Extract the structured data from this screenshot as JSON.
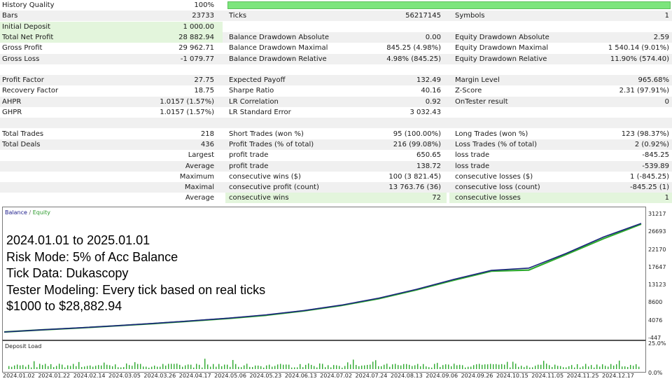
{
  "stats": {
    "rows": [
      {
        "alt": false,
        "hl": [],
        "quality_bar": true,
        "cells": [
          {
            "l": "History Quality",
            "v": "100%"
          },
          {
            "l": "",
            "v": ""
          },
          {
            "l": "",
            "v": ""
          }
        ]
      },
      {
        "alt": true,
        "hl": [],
        "cells": [
          {
            "l": "Bars",
            "v": "23733"
          },
          {
            "l": "Ticks",
            "v": "56217145"
          },
          {
            "l": "Symbols",
            "v": "1"
          }
        ]
      },
      {
        "alt": false,
        "hl": [
          0
        ],
        "cells": [
          {
            "l": "Initial Deposit",
            "v": "1 000.00"
          },
          {
            "l": "",
            "v": ""
          },
          {
            "l": "",
            "v": ""
          }
        ]
      },
      {
        "alt": true,
        "hl": [
          0
        ],
        "cells": [
          {
            "l": "Total Net Profit",
            "v": "28 882.94"
          },
          {
            "l": "Balance Drawdown Absolute",
            "v": "0.00"
          },
          {
            "l": "Equity Drawdown Absolute",
            "v": "2.59"
          }
        ]
      },
      {
        "alt": false,
        "hl": [],
        "cells": [
          {
            "l": "Gross Profit",
            "v": "29 962.71"
          },
          {
            "l": "Balance Drawdown Maximal",
            "v": "845.25 (4.98%)"
          },
          {
            "l": "Equity Drawdown Maximal",
            "v": "1 540.14 (9.01%)"
          }
        ]
      },
      {
        "alt": true,
        "hl": [],
        "cells": [
          {
            "l": "Gross Loss",
            "v": "-1 079.77"
          },
          {
            "l": "Balance Drawdown Relative",
            "v": "4.98% (845.25)"
          },
          {
            "l": "Equity Drawdown Relative",
            "v": "11.90% (574.40)"
          }
        ]
      },
      {
        "alt": false,
        "hl": [],
        "cells": [
          {
            "l": "",
            "v": ""
          },
          {
            "l": "",
            "v": ""
          },
          {
            "l": "",
            "v": ""
          }
        ]
      },
      {
        "alt": true,
        "hl": [],
        "cells": [
          {
            "l": "Profit Factor",
            "v": "27.75"
          },
          {
            "l": "Expected Payoff",
            "v": "132.49"
          },
          {
            "l": "Margin Level",
            "v": "965.68%"
          }
        ]
      },
      {
        "alt": false,
        "hl": [],
        "cells": [
          {
            "l": "Recovery Factor",
            "v": "18.75"
          },
          {
            "l": "Sharpe Ratio",
            "v": "40.16"
          },
          {
            "l": "Z-Score",
            "v": "2.31 (97.91%)"
          }
        ]
      },
      {
        "alt": true,
        "hl": [],
        "cells": [
          {
            "l": "AHPR",
            "v": "1.0157 (1.57%)"
          },
          {
            "l": "LR Correlation",
            "v": "0.92"
          },
          {
            "l": "OnTester result",
            "v": "0"
          }
        ]
      },
      {
        "alt": false,
        "hl": [],
        "cells": [
          {
            "l": "GHPR",
            "v": "1.0157 (1.57%)"
          },
          {
            "l": "LR Standard Error",
            "v": "3 032.43"
          },
          {
            "l": "",
            "v": ""
          }
        ]
      },
      {
        "alt": true,
        "hl": [],
        "cells": [
          {
            "l": "",
            "v": ""
          },
          {
            "l": "",
            "v": ""
          },
          {
            "l": "",
            "v": ""
          }
        ]
      },
      {
        "alt": false,
        "hl": [],
        "cells": [
          {
            "l": "Total Trades",
            "v": "218"
          },
          {
            "l": "Short Trades (won %)",
            "v": "95 (100.00%)"
          },
          {
            "l": "Long Trades (won %)",
            "v": "123 (98.37%)"
          }
        ]
      },
      {
        "alt": true,
        "hl": [],
        "cells": [
          {
            "l": "Total Deals",
            "v": "436"
          },
          {
            "l": "Profit Trades (% of total)",
            "v": "216 (99.08%)"
          },
          {
            "l": "Loss Trades (% of total)",
            "v": "2 (0.92%)"
          }
        ]
      },
      {
        "alt": false,
        "hl": [],
        "label_right": "Largest",
        "cells": [
          {
            "l": "",
            "v": ""
          },
          {
            "l": "profit trade",
            "v": "650.65"
          },
          {
            "l": "loss trade",
            "v": "-845.25"
          }
        ]
      },
      {
        "alt": true,
        "hl": [],
        "label_right": "Average",
        "cells": [
          {
            "l": "",
            "v": ""
          },
          {
            "l": "profit trade",
            "v": "138.72"
          },
          {
            "l": "loss trade",
            "v": "-539.89"
          }
        ]
      },
      {
        "alt": false,
        "hl": [],
        "label_right": "Maximum",
        "cells": [
          {
            "l": "",
            "v": ""
          },
          {
            "l": "consecutive wins ($)",
            "v": "100 (3 821.45)"
          },
          {
            "l": "consecutive losses ($)",
            "v": "1 (-845.25)"
          }
        ]
      },
      {
        "alt": true,
        "hl": [],
        "label_right": "Maximal",
        "cells": [
          {
            "l": "",
            "v": ""
          },
          {
            "l": "consecutive profit (count)",
            "v": "13 763.76 (36)"
          },
          {
            "l": "consecutive loss (count)",
            "v": "-845.25 (1)"
          }
        ]
      },
      {
        "alt": false,
        "hl": [
          1,
          2
        ],
        "label_right": "Average",
        "cells": [
          {
            "l": "",
            "v": ""
          },
          {
            "l": "consecutive wins",
            "v": "72"
          },
          {
            "l": "consecutive losses",
            "v": "1"
          }
        ]
      }
    ]
  },
  "chart": {
    "legend_balance": "Balance",
    "legend_sep": " / ",
    "legend_equity": "Equity",
    "load_title": "Deposit Load",
    "overlay_lines": [
      "2024.01.01 to 2025.01.01",
      "Risk Mode: 5% of Acc Balance",
      "Tick Data: Dukascopy",
      "Tester Modeling: Every tick based on real ticks",
      "$1000 to $28,882.94"
    ],
    "colors": {
      "balance": "#1a237e",
      "equity": "#2eaa2e",
      "load": "#2eaa2e"
    }
  },
  "chart_data": {
    "type": "line",
    "y_ticks": [
      "31217",
      "26693",
      "22170",
      "17647",
      "13123",
      "8600",
      "4076",
      "-447"
    ],
    "load_ticks": [
      "25.0%",
      "0.0%"
    ],
    "x_ticks": [
      "2024.01.02",
      "2024.01.22",
      "2024.02.14",
      "2024.03.05",
      "2024.03.26",
      "2024.04.17",
      "2024.05.06",
      "2024.05.23",
      "2024.06.13",
      "2024.07.02",
      "2024.07.24",
      "2024.08.13",
      "2024.09.06",
      "2024.09.26",
      "2024.10.15",
      "2024.11.05",
      "2024.11.25",
      "2024.12.17"
    ],
    "ylim": [
      -447,
      31217
    ],
    "load_ylim": [
      0,
      25
    ],
    "series": [
      {
        "name": "Balance",
        "values": [
          1000,
          1550,
          2050,
          2600,
          3200,
          3850,
          4550,
          5400,
          6500,
          7900,
          9700,
          11950,
          14500,
          16800,
          17400,
          21200,
          25400,
          28882.94
        ]
      },
      {
        "name": "Equity",
        "values": [
          997,
          1530,
          2020,
          2570,
          3150,
          3800,
          4480,
          5300,
          6400,
          7800,
          9550,
          11800,
          14300,
          16600,
          16900,
          20900,
          25000,
          28700
        ]
      }
    ]
  }
}
